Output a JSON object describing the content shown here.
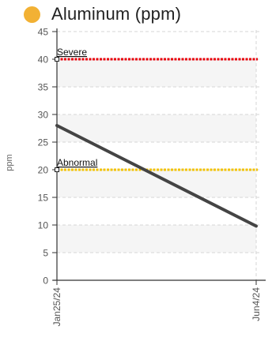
{
  "title": "Aluminum (ppm)",
  "series_color": "#F2B134",
  "chart_data": {
    "type": "line",
    "title": "Aluminum (ppm)",
    "xlabel": "",
    "ylabel": "ppm",
    "x": [
      "Jan25/24",
      "Jun4/24"
    ],
    "y": [
      28,
      9.8
    ],
    "ylim": [
      0,
      45
    ],
    "y_ticks": [
      "0",
      "5",
      "10",
      "15",
      "20",
      "25",
      "30",
      "35",
      "40",
      "45"
    ],
    "x_ticks": [
      "Jan25/24",
      "Jun4/24"
    ],
    "grid": true,
    "line_color": "#444444",
    "thresholds": [
      {
        "label": "Severe",
        "value": 40,
        "color": "#E8000B"
      },
      {
        "label": "Abnormal",
        "value": 20,
        "color": "#F2C200"
      }
    ],
    "band_colors": [
      "#ffffff",
      "#f5f5f5"
    ]
  }
}
